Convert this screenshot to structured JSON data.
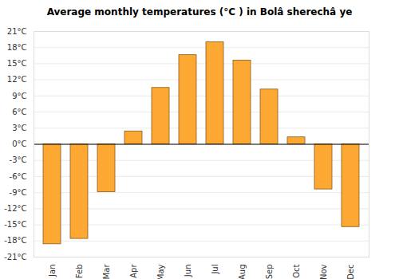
{
  "chart_data": {
    "type": "bar",
    "title": "Average monthly temperatures (°C ) in Bolâ  sherechâ  ye",
    "categories": [
      "Jan",
      "Feb",
      "Mar",
      "Apr",
      "May",
      "Jun",
      "Jul",
      "Aug",
      "Sep",
      "Oct",
      "Nov",
      "Dec"
    ],
    "values": [
      -18.6,
      -17.6,
      -8.9,
      2.4,
      10.5,
      16.6,
      19.0,
      15.6,
      10.2,
      1.3,
      -8.4,
      -15.4
    ],
    "color": "#fca832",
    "ylim": [
      -21,
      21
    ],
    "yticks": [
      {
        "value": -21,
        "label": "-21°C"
      },
      {
        "value": -18,
        "label": "-18°C"
      },
      {
        "value": -15,
        "label": "-15°C"
      },
      {
        "value": -12,
        "label": "-12°C"
      },
      {
        "value": -9,
        "label": "-9°C"
      },
      {
        "value": -6,
        "label": "-6°C"
      },
      {
        "value": -3,
        "label": "-3°C"
      },
      {
        "value": 0,
        "label": "0°C"
      },
      {
        "value": 3,
        "label": "3°C"
      },
      {
        "value": 6,
        "label": "6°C"
      },
      {
        "value": 9,
        "label": "9°C"
      },
      {
        "value": 12,
        "label": "12°C"
      },
      {
        "value": 15,
        "label": "15°C"
      },
      {
        "value": 18,
        "label": "18°C"
      },
      {
        "value": 21,
        "label": "21°C"
      }
    ],
    "grid": true
  }
}
